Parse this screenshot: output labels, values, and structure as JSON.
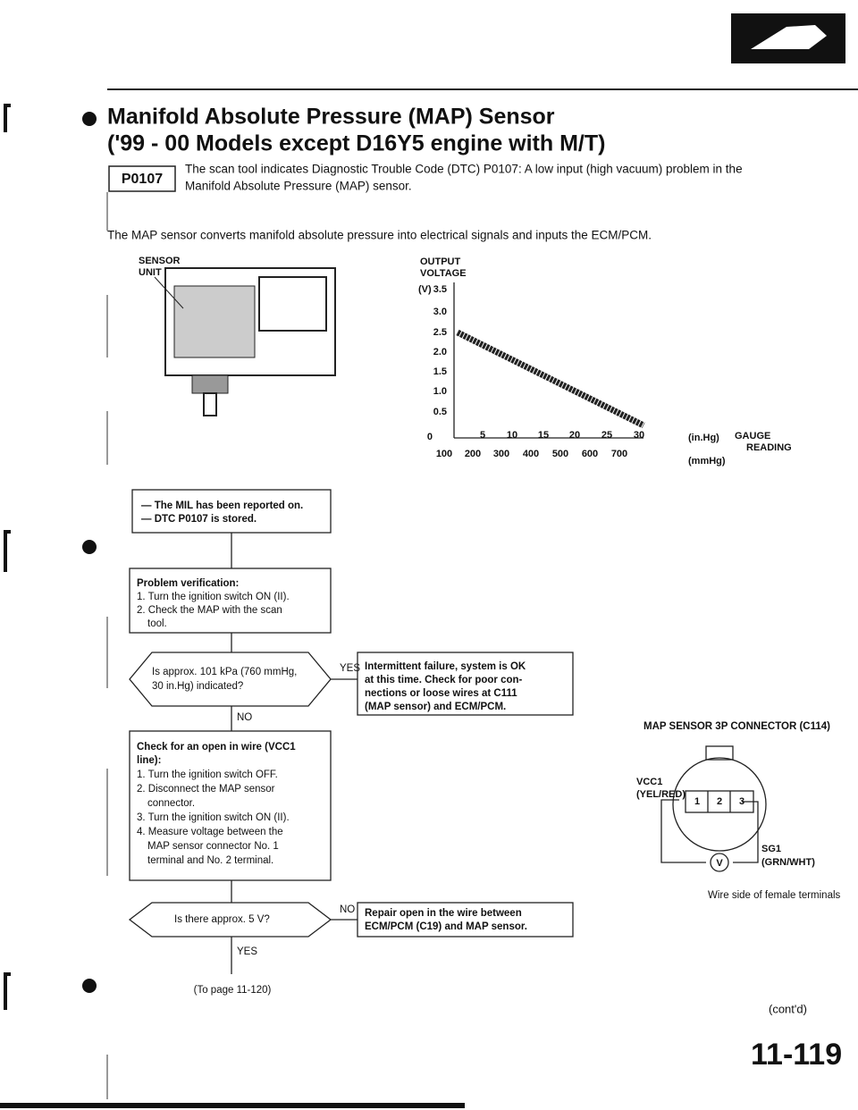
{
  "header": {
    "title": "Manifold Absolute Pressure (MAP) Sensor",
    "subtitle": "('99 - 00 Models except D16Y5 engine with M/T)"
  },
  "dtc": {
    "code": "P0107",
    "lines": [
      "The scan tool indicates Diagnostic Trouble Code (DTC) P0107: A low input (high vacuum) problem in the",
      "Manifold Absolute Pressure (MAP) sensor."
    ]
  },
  "intro": "The MAP sensor converts manifold absolute pressure into electrical signals and inputs the ECM/PCM.",
  "sensor": {
    "label": [
      "SENSOR",
      "UNIT"
    ]
  },
  "graph": {
    "title": [
      "OUTPUT",
      "VOLTAGE"
    ],
    "y_unit": "(V)",
    "yticks": [
      "3.5",
      "3.0",
      "2.5",
      "2.0",
      "1.5",
      "1.0",
      "0.5"
    ],
    "origin": "0",
    "xticks_inhg": [
      "5",
      "10",
      "15",
      "20",
      "25",
      "30"
    ],
    "xticks_mmhg": [
      "100",
      "200",
      "300",
      "400",
      "500",
      "600",
      "700"
    ],
    "x_unit_inhg": "(in.Hg)",
    "x_unit_mmhg": "(mmHg)",
    "x_label": [
      "GAUGE",
      "READING"
    ]
  },
  "flow": {
    "start": [
      "— The MIL has been reported on.",
      "— DTC P0107 is stored."
    ],
    "verify": [
      "Problem verification:",
      "1. Turn the ignition switch ON (II).",
      "2. Check the MAP with the scan",
      "tool."
    ],
    "q1": [
      "Is approx. 101 kPa (760 mmHg,",
      "30 in.Hg) indicated?"
    ],
    "q1_yes": "YES",
    "q1_no": "NO",
    "intermittent": [
      "Intermittent failure, system is OK",
      "at this time. Check for poor con-",
      "nections or loose wires at C111",
      "(MAP sensor) and ECM/PCM."
    ],
    "check": [
      "Check for an open in wire (VCC1",
      "line):",
      "1. Turn the ignition switch OFF.",
      "2. Disconnect the MAP sensor",
      "connector.",
      "3. Turn the ignition switch ON (II).",
      "4. Measure voltage between the",
      "MAP sensor connector No. 1",
      "terminal and No. 2 terminal."
    ],
    "q2": "Is there approx. 5 V?",
    "q2_no": "NO",
    "q2_yes": "YES",
    "repair": [
      "Repair open in the wire between",
      "ECM/PCM (C19) and MAP sensor."
    ],
    "next": "(To page 11-120)"
  },
  "connector": {
    "title": "MAP SENSOR 3P CONNECTOR (C114)",
    "vcc": [
      "VCC1",
      "(YEL/RED)"
    ],
    "sg": [
      "SG1",
      "(GRN/WHT)"
    ],
    "pins": [
      "1",
      "2",
      "3"
    ],
    "symbol": "V",
    "caption": "Wire side of female terminals"
  },
  "footer": {
    "contd": "(cont'd)",
    "page": "11-119"
  }
}
